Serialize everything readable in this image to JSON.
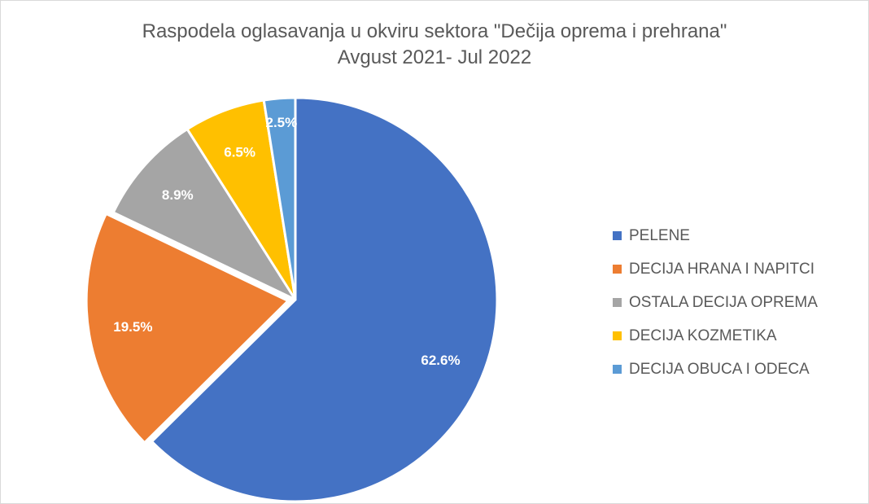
{
  "chart_data": {
    "type": "pie",
    "title": "Raspodela oglasavanja u okviru sektora \"Dečija oprema i prehrana\"",
    "subtitle": "Avgust 2021- Jul 2022",
    "categories": [
      "PELENE",
      "DECIJA HRANA I NAPITCI",
      "OSTALA DECIJA OPREMA",
      "DECIJA KOZMETIKA",
      "DECIJA OBUCA I ODECA"
    ],
    "values": [
      62.6,
      19.5,
      8.9,
      6.5,
      2.5
    ],
    "labels": [
      "62.6%",
      "19.5%",
      "8.9%",
      "6.5%",
      "2.5%"
    ],
    "colors": [
      "#4472C4",
      "#ED7D31",
      "#A5A5A5",
      "#FFC000",
      "#5B9BD5"
    ],
    "legend_position": "right",
    "exploded_slice": "DECIJA HRANA I NAPITCI"
  }
}
